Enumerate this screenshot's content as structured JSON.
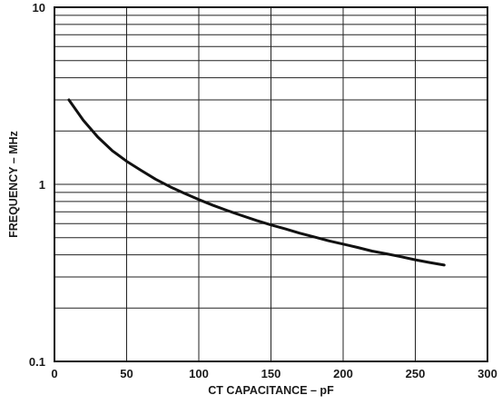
{
  "chart_data": {
    "type": "line",
    "title": "",
    "xlabel": "CT CAPACITANCE – pF",
    "ylabel": "FREQUENCY – MHz",
    "xlim": [
      0,
      300
    ],
    "ylim": [
      0.1,
      10
    ],
    "y_scale": "log",
    "grid": true,
    "legend": "none",
    "x_ticks": [
      "0",
      "50",
      "100",
      "150",
      "200",
      "250",
      "300"
    ],
    "y_ticks": [
      "0.1",
      "1",
      "10"
    ],
    "series": [
      {
        "x": [
          10,
          20,
          30,
          40,
          50,
          60,
          70,
          80,
          90,
          100,
          110,
          120,
          130,
          140,
          150,
          160,
          170,
          180,
          190,
          200,
          210,
          220,
          230,
          240,
          250,
          260,
          270
        ],
        "y": [
          3.0,
          2.3,
          1.85,
          1.55,
          1.35,
          1.2,
          1.07,
          0.97,
          0.89,
          0.82,
          0.76,
          0.71,
          0.665,
          0.625,
          0.59,
          0.56,
          0.53,
          0.505,
          0.48,
          0.46,
          0.44,
          0.42,
          0.405,
          0.39,
          0.375,
          0.362,
          0.35
        ]
      }
    ]
  },
  "colors": {
    "line": "#111111",
    "grid": "#222222",
    "background": "#ffffff"
  }
}
